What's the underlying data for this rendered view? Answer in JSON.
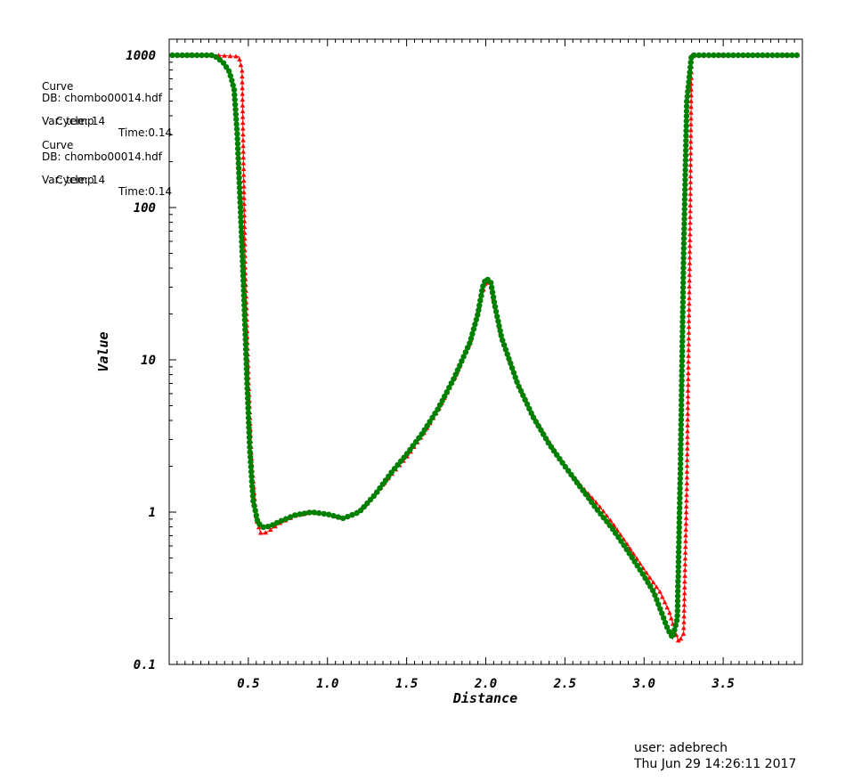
{
  "legend": [
    {
      "title": "Curve",
      "db": "DB: chombo00014.hdf",
      "cycle": "Cycle: 14",
      "time": "Time:0.14",
      "var": "Var: temp",
      "color": "#ff0000"
    },
    {
      "title": "Curve",
      "db": "DB: chombo00014.hdf",
      "cycle": "Cycle: 14",
      "time": "Time:0.14",
      "var": "Var: temp",
      "color": "#008000"
    }
  ],
  "footer": {
    "user": "user: adebrech",
    "date": "Thu Jun 29 14:26:11 2017"
  },
  "chart_data": {
    "type": "line",
    "xlabel": "Distance",
    "ylabel": "Value",
    "xlim": [
      0.0,
      4.0
    ],
    "ylim": [
      0.1,
      1000
    ],
    "yscale": "log",
    "x_ticks": [
      "0.5",
      "1.0",
      "1.5",
      "2.0",
      "2.5",
      "3.0",
      "3.5"
    ],
    "y_ticks": [
      "0.1",
      "1",
      "10",
      "100",
      "1000"
    ],
    "grid": false,
    "series": [
      {
        "color": "#ff0000",
        "marker": "triangle",
        "points": [
          [
            0.02,
            1000
          ],
          [
            0.3,
            1000
          ],
          [
            0.44,
            980
          ],
          [
            0.46,
            800
          ],
          [
            0.47,
            180
          ],
          [
            0.48,
            40
          ],
          [
            0.5,
            8
          ],
          [
            0.52,
            2.2
          ],
          [
            0.55,
            0.9
          ],
          [
            0.58,
            0.72
          ],
          [
            0.62,
            0.74
          ],
          [
            0.7,
            0.85
          ],
          [
            0.8,
            0.95
          ],
          [
            0.9,
            1.0
          ],
          [
            1.0,
            0.97
          ],
          [
            1.1,
            0.91
          ],
          [
            1.2,
            1.02
          ],
          [
            1.3,
            1.3
          ],
          [
            1.4,
            1.75
          ],
          [
            1.5,
            2.3
          ],
          [
            1.6,
            3.2
          ],
          [
            1.7,
            4.7
          ],
          [
            1.8,
            7.5
          ],
          [
            1.9,
            13
          ],
          [
            1.97,
            25
          ],
          [
            2.0,
            33
          ],
          [
            2.03,
            31
          ],
          [
            2.1,
            14
          ],
          [
            2.2,
            7.2
          ],
          [
            2.3,
            4.3
          ],
          [
            2.4,
            2.9
          ],
          [
            2.5,
            2.0
          ],
          [
            2.6,
            1.5
          ],
          [
            2.7,
            1.15
          ],
          [
            2.8,
            0.85
          ],
          [
            2.9,
            0.6
          ],
          [
            3.0,
            0.42
          ],
          [
            3.1,
            0.3
          ],
          [
            3.16,
            0.22
          ],
          [
            3.2,
            0.16
          ],
          [
            3.22,
            0.14
          ],
          [
            3.25,
            0.16
          ],
          [
            3.27,
            1.5
          ],
          [
            3.29,
            60
          ],
          [
            3.3,
            1000
          ],
          [
            3.97,
            1000
          ]
        ]
      },
      {
        "color": "#008000",
        "marker": "circle",
        "points": [
          [
            0.02,
            1000
          ],
          [
            0.28,
            1000
          ],
          [
            0.34,
            900
          ],
          [
            0.38,
            780
          ],
          [
            0.41,
            600
          ],
          [
            0.43,
            300
          ],
          [
            0.45,
            100
          ],
          [
            0.47,
            30
          ],
          [
            0.49,
            8
          ],
          [
            0.51,
            2.5
          ],
          [
            0.53,
            1.2
          ],
          [
            0.56,
            0.85
          ],
          [
            0.6,
            0.79
          ],
          [
            0.65,
            0.82
          ],
          [
            0.7,
            0.87
          ],
          [
            0.8,
            0.96
          ],
          [
            0.9,
            1.0
          ],
          [
            1.0,
            0.97
          ],
          [
            1.1,
            0.91
          ],
          [
            1.2,
            1.0
          ],
          [
            1.3,
            1.3
          ],
          [
            1.4,
            1.8
          ],
          [
            1.5,
            2.4
          ],
          [
            1.6,
            3.3
          ],
          [
            1.7,
            4.8
          ],
          [
            1.8,
            7.6
          ],
          [
            1.9,
            13
          ],
          [
            1.95,
            20
          ],
          [
            1.98,
            30
          ],
          [
            2.0,
            34
          ],
          [
            2.03,
            33
          ],
          [
            2.06,
            22
          ],
          [
            2.1,
            14
          ],
          [
            2.2,
            7
          ],
          [
            2.3,
            4.2
          ],
          [
            2.4,
            2.8
          ],
          [
            2.5,
            2.0
          ],
          [
            2.6,
            1.45
          ],
          [
            2.7,
            1.05
          ],
          [
            2.8,
            0.78
          ],
          [
            2.9,
            0.55
          ],
          [
            3.0,
            0.38
          ],
          [
            3.06,
            0.3
          ],
          [
            3.11,
            0.22
          ],
          [
            3.15,
            0.17
          ],
          [
            3.18,
            0.15
          ],
          [
            3.21,
            0.2
          ],
          [
            3.23,
            2
          ],
          [
            3.25,
            50
          ],
          [
            3.27,
            500
          ],
          [
            3.3,
            1000
          ],
          [
            3.97,
            1000
          ]
        ]
      }
    ]
  }
}
